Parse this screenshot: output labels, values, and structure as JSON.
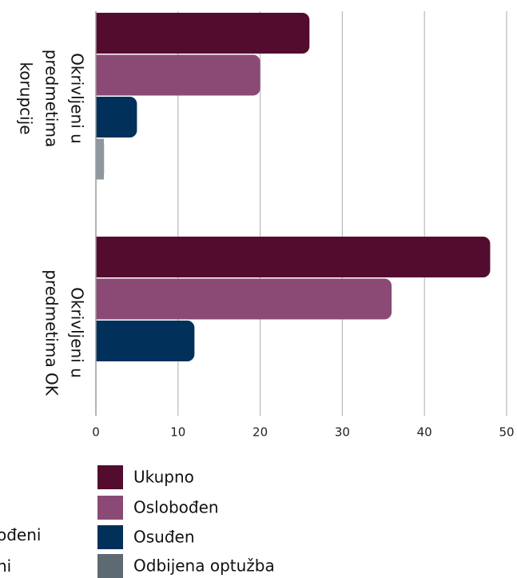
{
  "chart_data": {
    "type": "bar",
    "orientation": "horizontal",
    "categories": [
      "Okrivljeni u predmetima korupcije",
      "Okrivljeni u predmetima  OK"
    ],
    "category_label_lines": [
      [
        "Okrivljeni u",
        "predmetima",
        "korupcije"
      ],
      [
        "Okrivljeni u",
        "predmetima  OK"
      ]
    ],
    "series": [
      {
        "name": "Ukupno",
        "color": "#530c2e",
        "values": [
          26,
          48
        ]
      },
      {
        "name": "Oslobođen",
        "color": "#8b4a75",
        "values": [
          20,
          36
        ]
      },
      {
        "name": "Osuđen",
        "color": "#01305a",
        "values": [
          5,
          12
        ]
      },
      {
        "name": "Odbijena optužba",
        "color": "#8d989f",
        "values": [
          1,
          0
        ]
      }
    ],
    "xlim": [
      0,
      50
    ],
    "xticks": [
      0,
      10,
      20,
      30,
      40,
      50
    ],
    "xtick_labels": [
      "0",
      "10",
      "20",
      "30",
      "40",
      "50"
    ],
    "grid": "vertical",
    "legend_position": "bottom",
    "legend_marker_colors": [
      "#530c2e",
      "#8b4a75",
      "#01305a",
      "#5e6a71"
    ],
    "title": "",
    "xlabel": "",
    "ylabel": ""
  },
  "cropped_text": [
    "ođeni",
    "ni"
  ]
}
